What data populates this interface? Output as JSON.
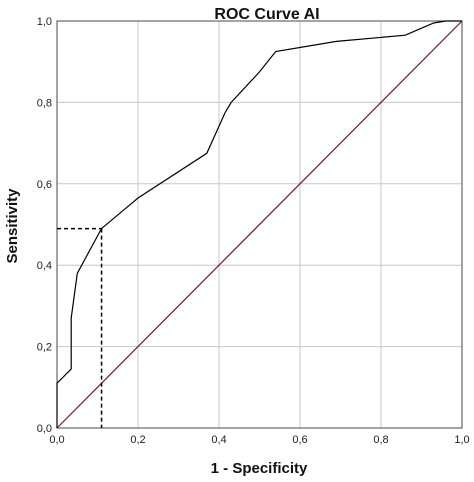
{
  "chart_data": {
    "type": "line",
    "title": "ROC Curve AI",
    "xlabel": "1 - Specificity",
    "ylabel": "Sensitivity",
    "xlim": [
      0,
      1
    ],
    "ylim": [
      0,
      1
    ],
    "grid": true,
    "x_ticks": [
      "0,0",
      "0,2",
      "0,4",
      "0,6",
      "0,8",
      "1,0"
    ],
    "y_ticks": [
      "0,0",
      "0,2",
      "0,4",
      "0,6",
      "0,8",
      "1,0"
    ],
    "series": [
      {
        "kind": "roc",
        "color": "#000000",
        "points": [
          [
            0.0,
            0.0
          ],
          [
            0.0,
            0.11
          ],
          [
            0.035,
            0.145
          ],
          [
            0.035,
            0.27
          ],
          [
            0.05,
            0.38
          ],
          [
            0.11,
            0.49
          ],
          [
            0.2,
            0.565
          ],
          [
            0.37,
            0.675
          ],
          [
            0.415,
            0.775
          ],
          [
            0.43,
            0.8
          ],
          [
            0.5,
            0.875
          ],
          [
            0.54,
            0.925
          ],
          [
            0.69,
            0.95
          ],
          [
            0.86,
            0.965
          ],
          [
            0.93,
            0.995
          ],
          [
            0.96,
            1.0
          ],
          [
            1.0,
            1.0
          ]
        ]
      },
      {
        "kind": "reference",
        "color": "#6a1e2a",
        "points": [
          [
            0,
            0
          ],
          [
            1,
            1
          ]
        ]
      }
    ],
    "cutoff": {
      "x": 0.11,
      "y": 0.49,
      "style": "dashed",
      "color": "#000000"
    }
  }
}
